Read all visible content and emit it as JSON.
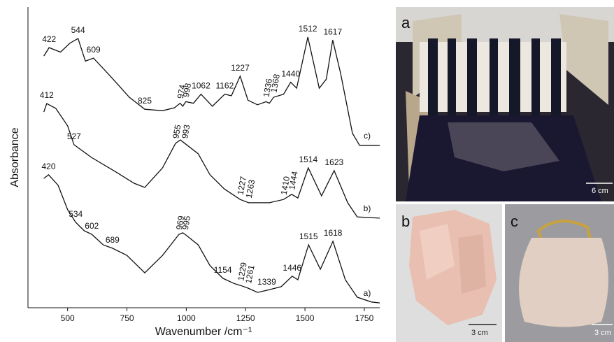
{
  "chart_data": {
    "type": "line",
    "ylabel": "Absorbance",
    "xlabel": "Wavenumber /cm⁻¹",
    "xlim": [
      333,
      1815
    ],
    "ylim": [
      0,
      100
    ],
    "xticks": [
      500,
      750,
      1000,
      1250,
      1500,
      1750
    ],
    "series": [
      {
        "name": "c)",
        "color": "#111111",
        "x": [
          400,
          422,
          470,
          510,
          544,
          575,
          609,
          680,
          760,
          825,
          900,
          950,
          974,
          985,
          998,
          1030,
          1062,
          1110,
          1162,
          1190,
          1227,
          1260,
          1300,
          1336,
          1350,
          1368,
          1410,
          1440,
          1465,
          1512,
          1560,
          1590,
          1617,
          1650,
          1700,
          1730,
          1760,
          1815
        ],
        "values": [
          83.7,
          86.5,
          85,
          88,
          89.5,
          82,
          83,
          77,
          70,
          66,
          65.5,
          66.5,
          68,
          67,
          68.5,
          68,
          71,
          67,
          71,
          70.5,
          77,
          69,
          67.5,
          68.5,
          68,
          70,
          71,
          75,
          73,
          90,
          73,
          76,
          89,
          78,
          58,
          54,
          54,
          54
        ],
        "peaks": [
          422,
          544,
          609,
          825,
          974,
          998,
          1062,
          1162,
          1227,
          1336,
          1368,
          1440,
          1512,
          1617
        ]
      },
      {
        "name": "b)",
        "color": "#111111",
        "x": [
          400,
          412,
          450,
          500,
          527,
          600,
          700,
          780,
          825,
          900,
          955,
          975,
          993,
          1050,
          1100,
          1160,
          1227,
          1263,
          1350,
          1410,
          1444,
          1470,
          1514,
          1570,
          1623,
          1680,
          1720,
          1815
        ],
        "values": [
          65.1,
          67.9,
          66.3,
          60.5,
          54.2,
          50,
          45.3,
          41.4,
          40,
          46.5,
          54.7,
          55.8,
          54.7,
          51.2,
          44.2,
          39.5,
          36,
          34.9,
          34.9,
          36,
          37.7,
          36.5,
          46.5,
          37.2,
          45.6,
          34.9,
          30.2,
          29.8
        ],
        "peaks": [
          412,
          527,
          955,
          993,
          1227,
          1263,
          1410,
          1444,
          1514,
          1623
        ]
      },
      {
        "name": "a)",
        "color": "#111111",
        "x": [
          400,
          420,
          460,
          500,
          534,
          570,
          602,
          650,
          689,
          750,
          825,
          900,
          969,
          985,
          995,
          1050,
          1100,
          1154,
          1200,
          1229,
          1261,
          1300,
          1339,
          1400,
          1446,
          1470,
          1515,
          1565,
          1618,
          1670,
          1720,
          1780,
          1815
        ],
        "values": [
          43,
          44.2,
          40.7,
          32.6,
          28.4,
          25.6,
          24.4,
          20.9,
          19.8,
          17.4,
          11.6,
          17.4,
          24.4,
          24.9,
          24.4,
          20.9,
          14,
          9.8,
          8.1,
          7.4,
          6.5,
          5.1,
          5.8,
          7,
          10.5,
          9.3,
          20.9,
          12.8,
          22.1,
          9.3,
          3.5,
          1.9,
          1.6
        ],
        "peaks": [
          420,
          534,
          602,
          689,
          969,
          995,
          1154,
          1229,
          1261,
          1339,
          1446,
          1515,
          1618
        ]
      }
    ]
  },
  "panels": [
    {
      "label": "a",
      "scale": "6 cm"
    },
    {
      "label": "b",
      "scale": "3 cm"
    },
    {
      "label": "c",
      "scale": "3 cm"
    }
  ]
}
